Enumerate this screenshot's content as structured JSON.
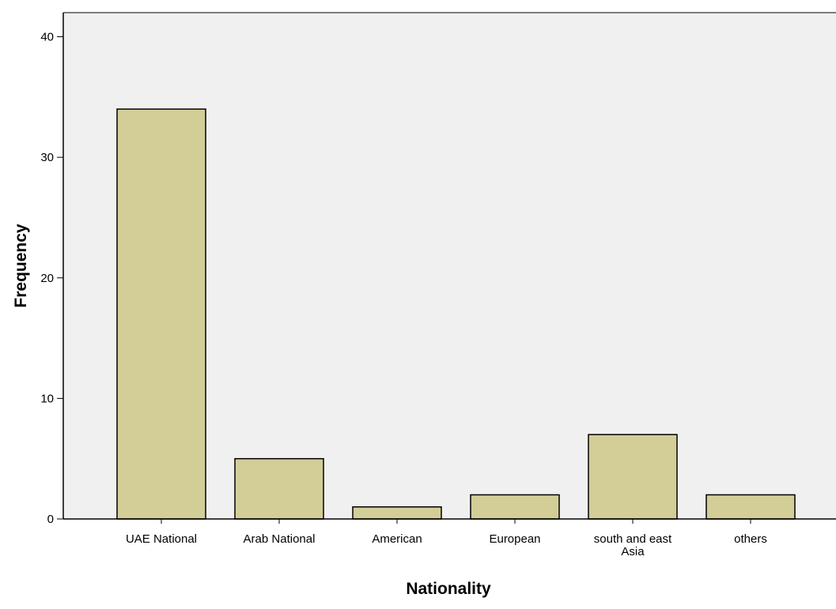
{
  "chart_data": {
    "type": "bar",
    "title": "",
    "xlabel": "Nationality",
    "ylabel": "Frequency",
    "categories": [
      "UAE National",
      "Arab National",
      "American",
      "European",
      "south and east Asia",
      "others"
    ],
    "category_lines": [
      [
        "UAE National"
      ],
      [
        "Arab National"
      ],
      [
        "American"
      ],
      [
        "European"
      ],
      [
        "south and east",
        "Asia"
      ],
      [
        "others"
      ]
    ],
    "values": [
      34,
      5,
      1,
      2,
      7,
      2
    ],
    "ylim": [
      0,
      42
    ],
    "yticks": [
      0,
      10,
      20,
      30,
      40
    ],
    "grid": false,
    "legend": "none",
    "colors": {
      "plot_background": "#f0f0f0",
      "bar_fill": "#d3ce97",
      "bar_stroke": "#000000",
      "axis": "#000000"
    }
  }
}
